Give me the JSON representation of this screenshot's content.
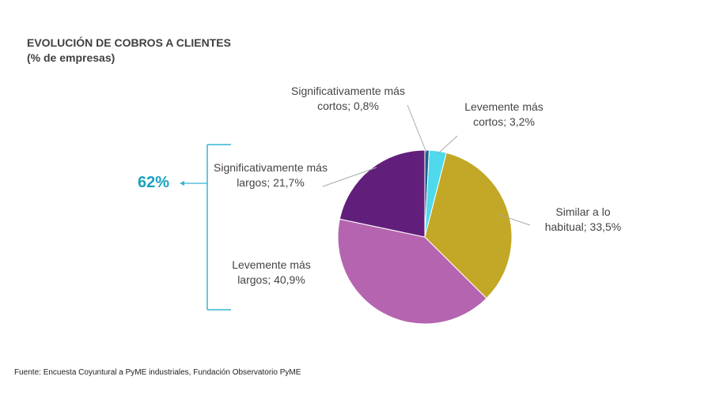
{
  "chart_data": {
    "type": "pie",
    "title": "EVOLUCIÓN DE COBROS A CLIENTES",
    "subtitle": "(% de empresas)",
    "categories": [
      "Significativamente más cortos",
      "Levemente más cortos",
      "Similar a lo habitual",
      "Levemente más largos",
      "Significativamente más largos"
    ],
    "values": [
      0.8,
      3.2,
      33.5,
      40.9,
      21.7
    ],
    "value_labels": [
      "Significativamente más cortos; 0,8%",
      "Levemente más cortos; 3,2%",
      "Similar a lo habitual; 33,5%",
      "Levemente más largos; 40,9%",
      "Significativamente más largos; 21,7%"
    ],
    "colors": [
      "#1e5f8e",
      "#4fd9ec",
      "#c2a826",
      "#b565b0",
      "#611f7b"
    ],
    "annotation": "62%",
    "source": "Fuente: Encuesta Coyuntural a PyME industriales, Fundación Observatorio PyME"
  }
}
